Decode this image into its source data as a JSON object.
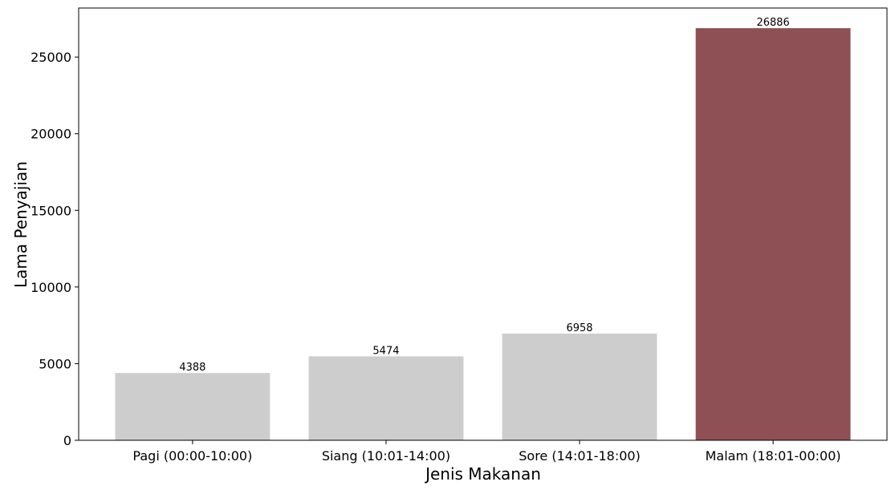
{
  "chart_data": {
    "type": "bar",
    "title": "",
    "xlabel": "Jenis Makanan",
    "ylabel": "Lama Penyajian",
    "categories": [
      "Pagi (00:00-10:00)",
      "Siang (10:01-14:00)",
      "Sore (14:01-18:00)",
      "Malam (18:01-00:00)"
    ],
    "values": [
      4388,
      5474,
      6958,
      26886
    ],
    "data_labels": [
      "4388",
      "5474",
      "6958",
      "26886"
    ],
    "bar_colors": [
      "#cecdce",
      "#cecdce",
      "#cecdce",
      "#8f5055"
    ],
    "ylim": [
      0,
      28200
    ],
    "yticks": [
      0,
      5000,
      10000,
      15000,
      20000,
      25000
    ],
    "ytick_labels": [
      "0",
      "5000",
      "10000",
      "15000",
      "20000",
      "25000"
    ],
    "grid": false,
    "legend": "none"
  }
}
